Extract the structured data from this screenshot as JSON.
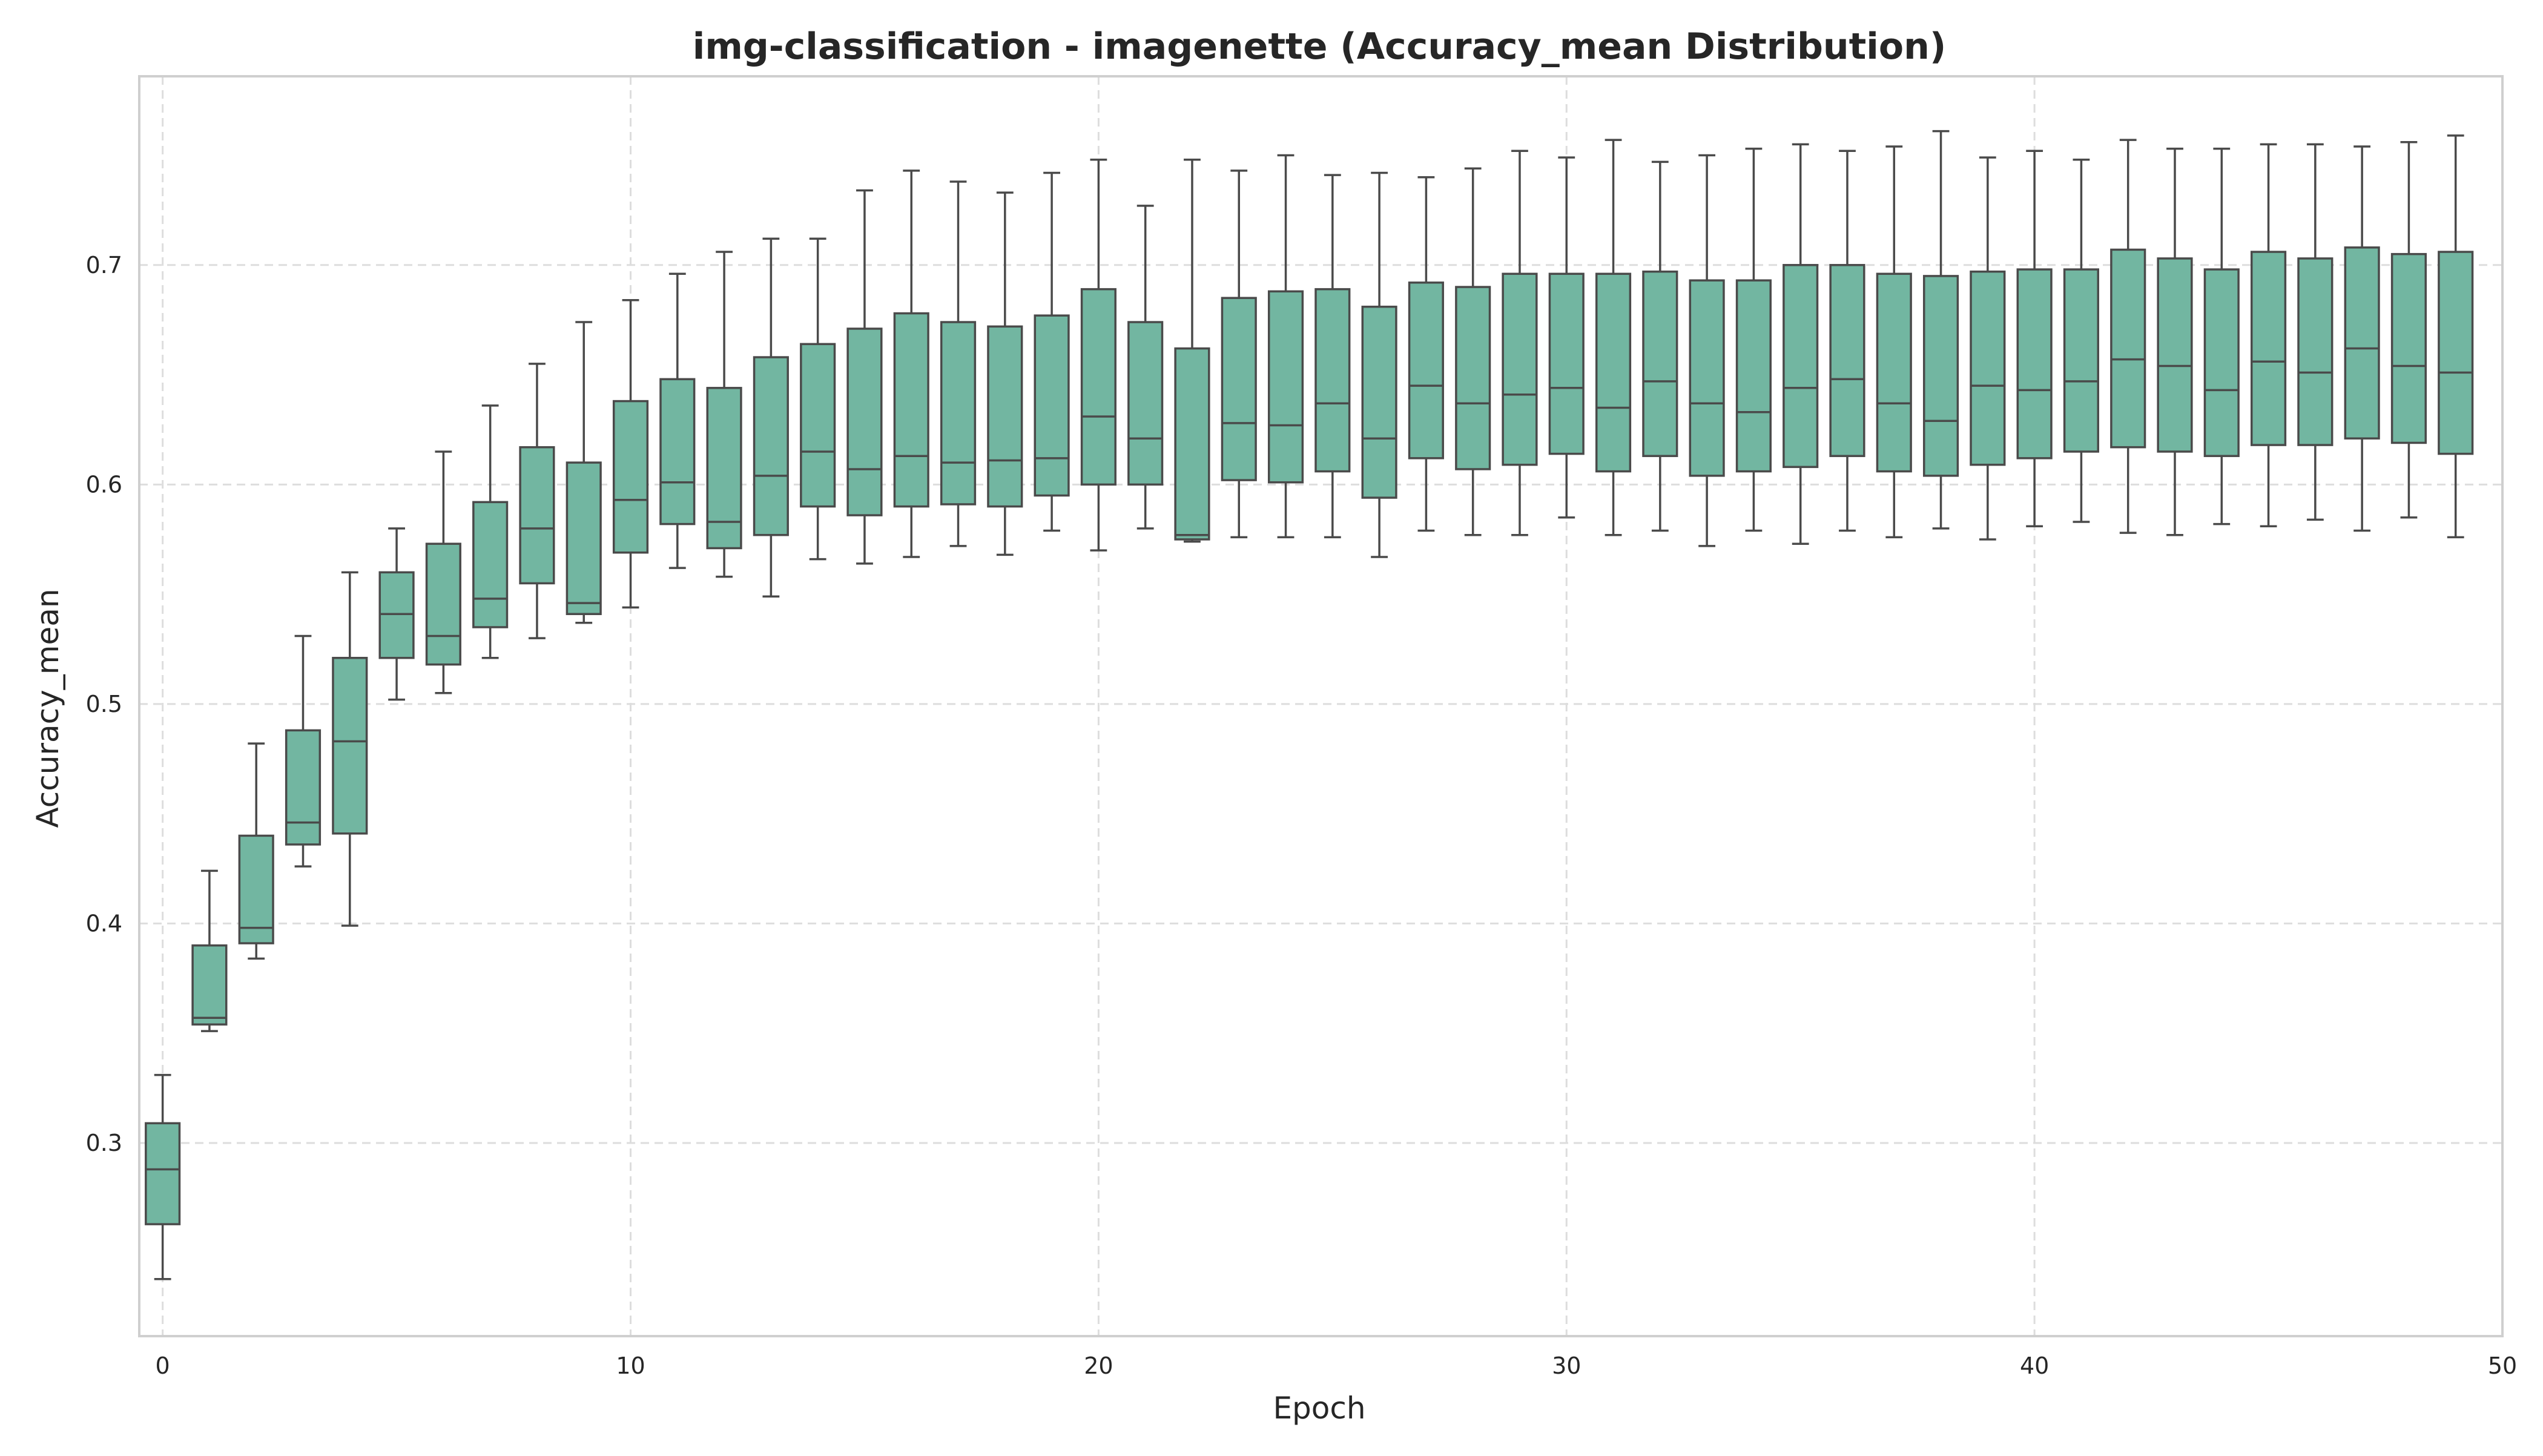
{
  "chart_data": {
    "type": "boxplot",
    "title": "img-classification - imagenette (Accuracy_mean Distribution)",
    "xlabel": "Epoch",
    "ylabel": "Accuracy_mean",
    "xlim": [
      -0.5,
      50
    ],
    "ylim": [
      0.212,
      0.786
    ],
    "xticks": [
      0,
      10,
      20,
      30,
      40,
      50
    ],
    "yticks": [
      0.3,
      0.4,
      0.5,
      0.6,
      0.7
    ],
    "ytick_labels": [
      "0.3",
      "0.4",
      "0.5",
      "0.6",
      "0.7"
    ],
    "grid": true,
    "box_color": "#72b6a1",
    "line_color": "#4a4a4a",
    "boxes": [
      {
        "epoch": 0,
        "min": 0.238,
        "q1": 0.263,
        "median": 0.288,
        "q3": 0.309,
        "max": 0.331
      },
      {
        "epoch": 1,
        "min": 0.351,
        "q1": 0.354,
        "median": 0.357,
        "q3": 0.39,
        "max": 0.424
      },
      {
        "epoch": 2,
        "min": 0.384,
        "q1": 0.391,
        "median": 0.398,
        "q3": 0.44,
        "max": 0.482
      },
      {
        "epoch": 3,
        "min": 0.426,
        "q1": 0.436,
        "median": 0.446,
        "q3": 0.488,
        "max": 0.531
      },
      {
        "epoch": 4,
        "min": 0.399,
        "q1": 0.441,
        "median": 0.483,
        "q3": 0.521,
        "max": 0.56
      },
      {
        "epoch": 5,
        "min": 0.502,
        "q1": 0.521,
        "median": 0.541,
        "q3": 0.56,
        "max": 0.58
      },
      {
        "epoch": 6,
        "min": 0.505,
        "q1": 0.518,
        "median": 0.531,
        "q3": 0.573,
        "max": 0.615
      },
      {
        "epoch": 7,
        "min": 0.521,
        "q1": 0.535,
        "median": 0.548,
        "q3": 0.592,
        "max": 0.636
      },
      {
        "epoch": 8,
        "min": 0.53,
        "q1": 0.555,
        "median": 0.58,
        "q3": 0.617,
        "max": 0.655
      },
      {
        "epoch": 9,
        "min": 0.537,
        "q1": 0.541,
        "median": 0.546,
        "q3": 0.61,
        "max": 0.674
      },
      {
        "epoch": 10,
        "min": 0.544,
        "q1": 0.569,
        "median": 0.593,
        "q3": 0.638,
        "max": 0.684
      },
      {
        "epoch": 11,
        "min": 0.562,
        "q1": 0.582,
        "median": 0.601,
        "q3": 0.648,
        "max": 0.696
      },
      {
        "epoch": 12,
        "min": 0.558,
        "q1": 0.571,
        "median": 0.583,
        "q3": 0.644,
        "max": 0.706
      },
      {
        "epoch": 13,
        "min": 0.549,
        "q1": 0.577,
        "median": 0.604,
        "q3": 0.658,
        "max": 0.712
      },
      {
        "epoch": 14,
        "min": 0.566,
        "q1": 0.59,
        "median": 0.615,
        "q3": 0.664,
        "max": 0.712
      },
      {
        "epoch": 15,
        "min": 0.564,
        "q1": 0.586,
        "median": 0.607,
        "q3": 0.671,
        "max": 0.734
      },
      {
        "epoch": 16,
        "min": 0.567,
        "q1": 0.59,
        "median": 0.613,
        "q3": 0.678,
        "max": 0.743
      },
      {
        "epoch": 17,
        "min": 0.572,
        "q1": 0.591,
        "median": 0.61,
        "q3": 0.674,
        "max": 0.738
      },
      {
        "epoch": 18,
        "min": 0.568,
        "q1": 0.59,
        "median": 0.611,
        "q3": 0.672,
        "max": 0.733
      },
      {
        "epoch": 19,
        "min": 0.579,
        "q1": 0.595,
        "median": 0.612,
        "q3": 0.677,
        "max": 0.742
      },
      {
        "epoch": 20,
        "min": 0.57,
        "q1": 0.6,
        "median": 0.631,
        "q3": 0.689,
        "max": 0.748
      },
      {
        "epoch": 21,
        "min": 0.58,
        "q1": 0.6,
        "median": 0.621,
        "q3": 0.674,
        "max": 0.727
      },
      {
        "epoch": 22,
        "min": 0.574,
        "q1": 0.575,
        "median": 0.577,
        "q3": 0.662,
        "max": 0.748
      },
      {
        "epoch": 23,
        "min": 0.576,
        "q1": 0.602,
        "median": 0.628,
        "q3": 0.685,
        "max": 0.743
      },
      {
        "epoch": 24,
        "min": 0.576,
        "q1": 0.601,
        "median": 0.627,
        "q3": 0.688,
        "max": 0.75
      },
      {
        "epoch": 25,
        "min": 0.576,
        "q1": 0.606,
        "median": 0.637,
        "q3": 0.689,
        "max": 0.741
      },
      {
        "epoch": 26,
        "min": 0.567,
        "q1": 0.594,
        "median": 0.621,
        "q3": 0.681,
        "max": 0.742
      },
      {
        "epoch": 27,
        "min": 0.579,
        "q1": 0.612,
        "median": 0.645,
        "q3": 0.692,
        "max": 0.74
      },
      {
        "epoch": 28,
        "min": 0.577,
        "q1": 0.607,
        "median": 0.637,
        "q3": 0.69,
        "max": 0.744
      },
      {
        "epoch": 29,
        "min": 0.577,
        "q1": 0.609,
        "median": 0.641,
        "q3": 0.696,
        "max": 0.752
      },
      {
        "epoch": 30,
        "min": 0.585,
        "q1": 0.614,
        "median": 0.644,
        "q3": 0.696,
        "max": 0.749
      },
      {
        "epoch": 31,
        "min": 0.577,
        "q1": 0.606,
        "median": 0.635,
        "q3": 0.696,
        "max": 0.757
      },
      {
        "epoch": 32,
        "min": 0.579,
        "q1": 0.613,
        "median": 0.647,
        "q3": 0.697,
        "max": 0.747
      },
      {
        "epoch": 33,
        "min": 0.572,
        "q1": 0.604,
        "median": 0.637,
        "q3": 0.693,
        "max": 0.75
      },
      {
        "epoch": 34,
        "min": 0.579,
        "q1": 0.606,
        "median": 0.633,
        "q3": 0.693,
        "max": 0.753
      },
      {
        "epoch": 35,
        "min": 0.573,
        "q1": 0.608,
        "median": 0.644,
        "q3": 0.7,
        "max": 0.755
      },
      {
        "epoch": 36,
        "min": 0.579,
        "q1": 0.613,
        "median": 0.648,
        "q3": 0.7,
        "max": 0.752
      },
      {
        "epoch": 37,
        "min": 0.576,
        "q1": 0.606,
        "median": 0.637,
        "q3": 0.696,
        "max": 0.754
      },
      {
        "epoch": 38,
        "min": 0.58,
        "q1": 0.604,
        "median": 0.629,
        "q3": 0.695,
        "max": 0.761
      },
      {
        "epoch": 39,
        "min": 0.575,
        "q1": 0.609,
        "median": 0.645,
        "q3": 0.697,
        "max": 0.749
      },
      {
        "epoch": 40,
        "min": 0.581,
        "q1": 0.612,
        "median": 0.643,
        "q3": 0.698,
        "max": 0.752
      },
      {
        "epoch": 41,
        "min": 0.583,
        "q1": 0.615,
        "median": 0.647,
        "q3": 0.698,
        "max": 0.748
      },
      {
        "epoch": 42,
        "min": 0.578,
        "q1": 0.617,
        "median": 0.657,
        "q3": 0.707,
        "max": 0.757
      },
      {
        "epoch": 43,
        "min": 0.577,
        "q1": 0.615,
        "median": 0.654,
        "q3": 0.703,
        "max": 0.753
      },
      {
        "epoch": 44,
        "min": 0.582,
        "q1": 0.613,
        "median": 0.643,
        "q3": 0.698,
        "max": 0.753
      },
      {
        "epoch": 45,
        "min": 0.581,
        "q1": 0.618,
        "median": 0.656,
        "q3": 0.706,
        "max": 0.755
      },
      {
        "epoch": 46,
        "min": 0.584,
        "q1": 0.618,
        "median": 0.651,
        "q3": 0.703,
        "max": 0.755
      },
      {
        "epoch": 47,
        "min": 0.579,
        "q1": 0.621,
        "median": 0.662,
        "q3": 0.708,
        "max": 0.754
      },
      {
        "epoch": 48,
        "min": 0.585,
        "q1": 0.619,
        "median": 0.654,
        "q3": 0.705,
        "max": 0.756
      },
      {
        "epoch": 49,
        "min": 0.576,
        "q1": 0.614,
        "median": 0.651,
        "q3": 0.706,
        "max": 0.759
      }
    ]
  }
}
